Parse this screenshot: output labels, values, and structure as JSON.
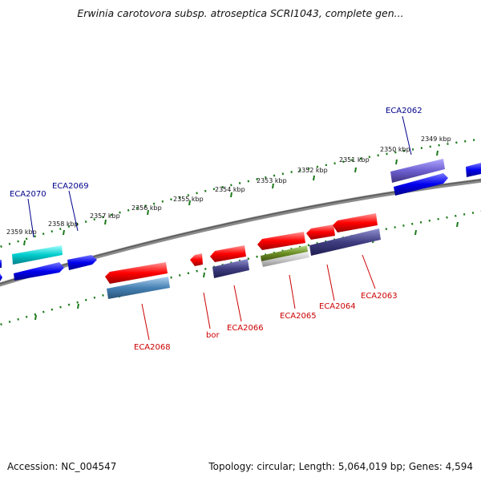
{
  "header": {
    "title": "Erwinia carotovora subsp. atroseptica SCRI1043, complete gen..."
  },
  "footer": {
    "accession": "Accession: NC_004547",
    "topology": "Topology: circular; Length: 5,064,019 bp; Genes: 4,594"
  },
  "colors": {
    "backbone": "#6e6e6e",
    "tick": "#1a7a1a",
    "label_forward": "#00008b",
    "label_reverse": "#cc0000"
  },
  "scale": {
    "ticks": [
      "2359 kbp",
      "2358 kbp",
      "2357 kbp",
      "2356 kbp",
      "2355 kbp",
      "2354 kbp",
      "2353 kbp",
      "2352 kbp",
      "2351 kbp",
      "2350 kbp",
      "2349 kbp"
    ]
  },
  "gene_labels": {
    "eca2070": "ECA2070",
    "eca2069": "ECA2069",
    "eca2062": "ECA2062",
    "eca2068": "ECA2068",
    "bor": "bor",
    "eca2066": "ECA2066",
    "eca2065": "ECA2065",
    "eca2064": "ECA2064",
    "eca2063": "ECA2063"
  }
}
